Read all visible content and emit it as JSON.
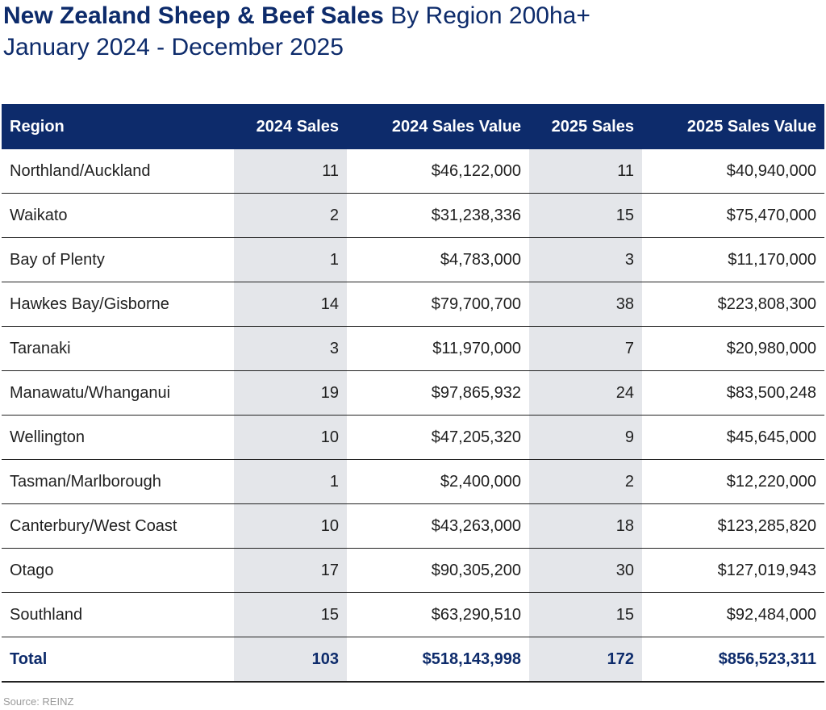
{
  "title": {
    "bold": "New Zealand Sheep & Beef Sales",
    "light": "By Region 200ha+"
  },
  "subtitle": "January 2024 - December 2025",
  "source": "Source: REINZ",
  "colors": {
    "header_bg": "#0d2b6b",
    "shade": "#e4e6ea",
    "total_text": "#0d2b6b"
  },
  "chart_data": {
    "type": "table",
    "columns": [
      "Region",
      "2024 Sales",
      "2024 Sales Value",
      "2025 Sales",
      "2025 Sales Value"
    ],
    "rows": [
      [
        "Northland/Auckland",
        "11",
        "$46,122,000",
        "11",
        "$40,940,000"
      ],
      [
        "Waikato",
        "2",
        "$31,238,336",
        "15",
        "$75,470,000"
      ],
      [
        "Bay of Plenty",
        "1",
        "$4,783,000",
        "3",
        "$11,170,000"
      ],
      [
        "Hawkes Bay/Gisborne",
        "14",
        "$79,700,700",
        "38",
        "$223,808,300"
      ],
      [
        "Taranaki",
        "3",
        "$11,970,000",
        "7",
        "$20,980,000"
      ],
      [
        "Manawatu/Whanganui",
        "19",
        "$97,865,932",
        "24",
        "$83,500,248"
      ],
      [
        "Wellington",
        "10",
        "$47,205,320",
        "9",
        "$45,645,000"
      ],
      [
        "Tasman/Marlborough",
        "1",
        "$2,400,000",
        "2",
        "$12,220,000"
      ],
      [
        "Canterbury/West Coast",
        "10",
        "$43,263,000",
        "18",
        "$123,285,820"
      ],
      [
        "Otago",
        "17",
        "$90,305,200",
        "30",
        "$127,019,943"
      ],
      [
        "Southland",
        "15",
        "$63,290,510",
        "15",
        "$92,484,000"
      ]
    ],
    "total": [
      "Total",
      "103",
      "$518,143,998",
      "172",
      "$856,523,311"
    ]
  }
}
